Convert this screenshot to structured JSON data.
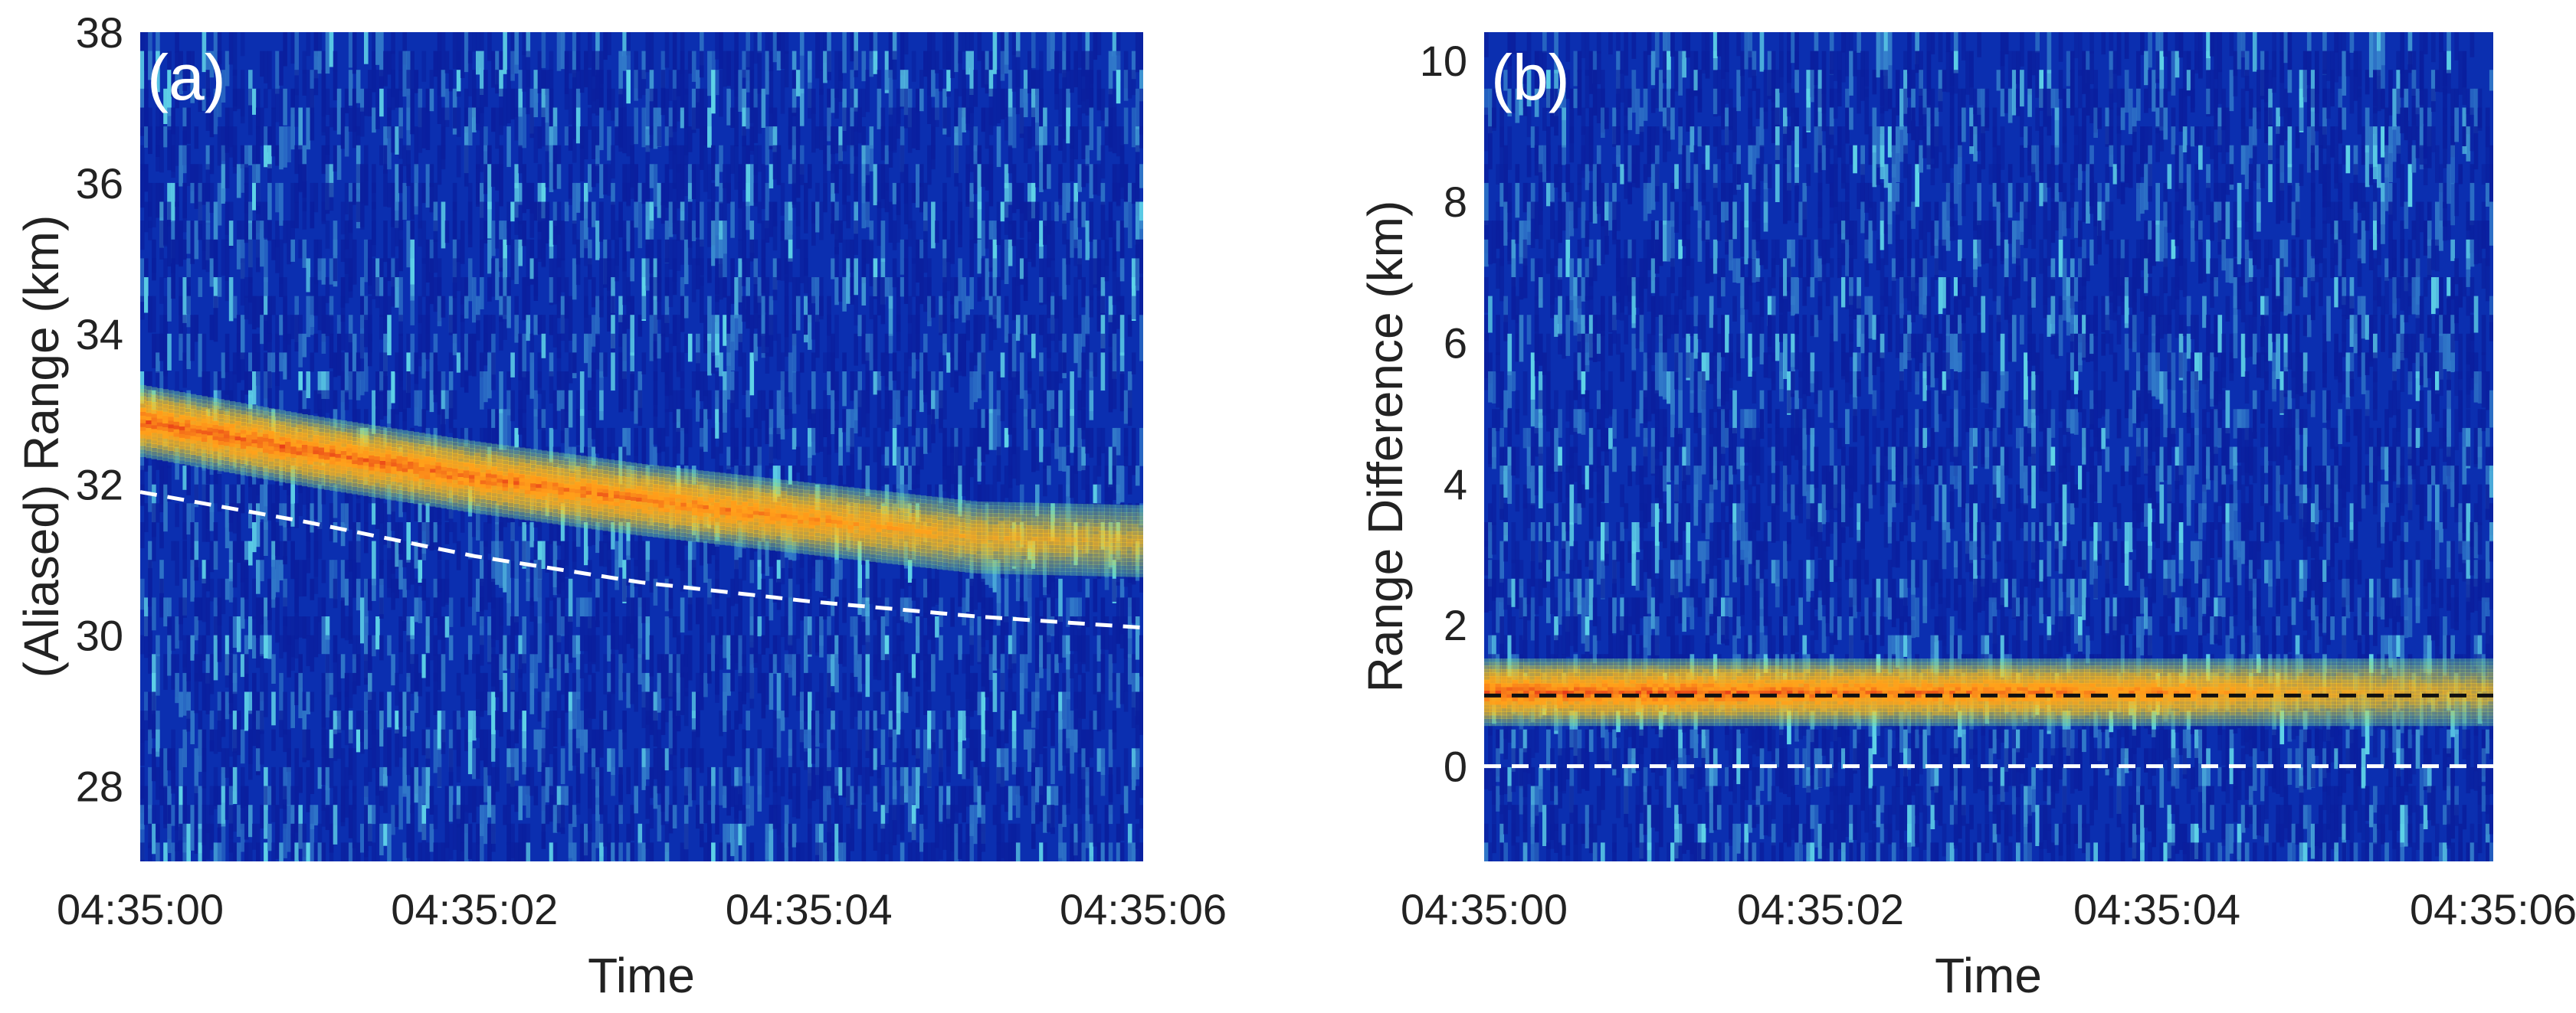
{
  "colors": {
    "background": "#0b2fb0",
    "noise_low": "#0a1f9e",
    "noise_high": "#5fd3e8",
    "echo_core": "#e83d18",
    "echo_mid": "#ffd21f",
    "echo_edge": "#6fe0a0",
    "white_line": "#ffffff",
    "black_line": "#111111"
  },
  "chart_data": [
    {
      "type": "heatmap",
      "panel_label": "(a)",
      "xlabel": "Time",
      "ylabel": "(Aliased) Range (km)",
      "x_tick_labels": [
        "04:35:00",
        "04:35:02",
        "04:35:04",
        "04:35:06"
      ],
      "x_ticks_seconds": [
        0,
        2,
        4,
        6
      ],
      "xlim_seconds": [
        0,
        6
      ],
      "y_ticks": [
        28,
        30,
        32,
        34,
        36,
        38
      ],
      "ylim": [
        27,
        38
      ],
      "echo_track": {
        "time_seconds": [
          0,
          1,
          2,
          3,
          4,
          5,
          6
        ],
        "range_km": [
          32.85,
          32.45,
          32.1,
          31.8,
          31.55,
          31.3,
          31.25
        ],
        "halfwidth_km": 0.45,
        "peak_intensity": [
          1.0,
          1.0,
          0.95,
          0.9,
          0.85,
          0.6,
          0.45
        ]
      },
      "reference_lines": [
        {
          "name": "predicted-range",
          "style": "dashed",
          "color": "white",
          "time_seconds": [
            0,
            1,
            2,
            3,
            4,
            5,
            6
          ],
          "range_km": [
            31.9,
            31.5,
            31.05,
            30.7,
            30.45,
            30.25,
            30.1
          ]
        }
      ]
    },
    {
      "type": "heatmap",
      "panel_label": "(b)",
      "xlabel": "Time",
      "ylabel": "Range Difference (km)",
      "x_tick_labels": [
        "04:35:00",
        "04:35:02",
        "04:35:04",
        "04:35:06"
      ],
      "x_ticks_seconds": [
        0,
        2,
        4,
        6
      ],
      "xlim_seconds": [
        0,
        6
      ],
      "y_ticks": [
        0,
        2,
        4,
        6,
        8,
        10
      ],
      "ylim": [
        -1.35,
        10.4
      ],
      "echo_track": {
        "time_seconds": [
          0,
          1,
          2,
          3,
          4,
          5,
          6
        ],
        "range_km": [
          1.05,
          1.05,
          1.05,
          1.05,
          1.05,
          1.05,
          1.05
        ],
        "halfwidth_km": 0.45,
        "peak_intensity": [
          1.0,
          1.0,
          0.95,
          0.9,
          0.85,
          0.6,
          0.45
        ]
      },
      "reference_lines": [
        {
          "name": "offset-line",
          "style": "dashed",
          "color": "black",
          "time_seconds": [
            0,
            6
          ],
          "range_km": [
            1.0,
            1.0
          ]
        },
        {
          "name": "zero-line",
          "style": "dashed",
          "color": "white",
          "time_seconds": [
            0,
            6
          ],
          "range_km": [
            0.0,
            0.0
          ]
        }
      ]
    }
  ]
}
